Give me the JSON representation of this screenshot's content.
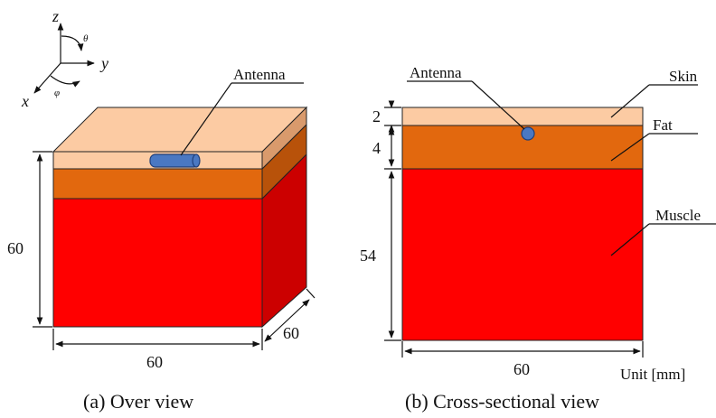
{
  "colors": {
    "skin": "#FCCBA3",
    "skin_side": "#D99A6C",
    "fat": "#E2680E",
    "fat_side": "#B8520A",
    "muscle": "#FF0000",
    "muscle_side": "#CC0000",
    "antenna": "#4A78C2",
    "antenna_edge": "#1F3F7A"
  },
  "axes": {
    "z": "z",
    "y": "y",
    "x": "x",
    "theta": "θ",
    "phi": "φ"
  },
  "over_view": {
    "antenna_label": "Antenna",
    "height_dim": "60",
    "width_dim": "60",
    "depth_dim": "60",
    "caption": "(a) Over view"
  },
  "cross_section": {
    "antenna_label": "Antenna",
    "skin_label": "Skin",
    "fat_label": "Fat",
    "muscle_label": "Muscle",
    "skin_dim": "2",
    "fat_dim": "4",
    "muscle_dim": "54",
    "width_dim": "60",
    "unit": "Unit [mm]",
    "caption": "(b) Cross-sectional view"
  }
}
